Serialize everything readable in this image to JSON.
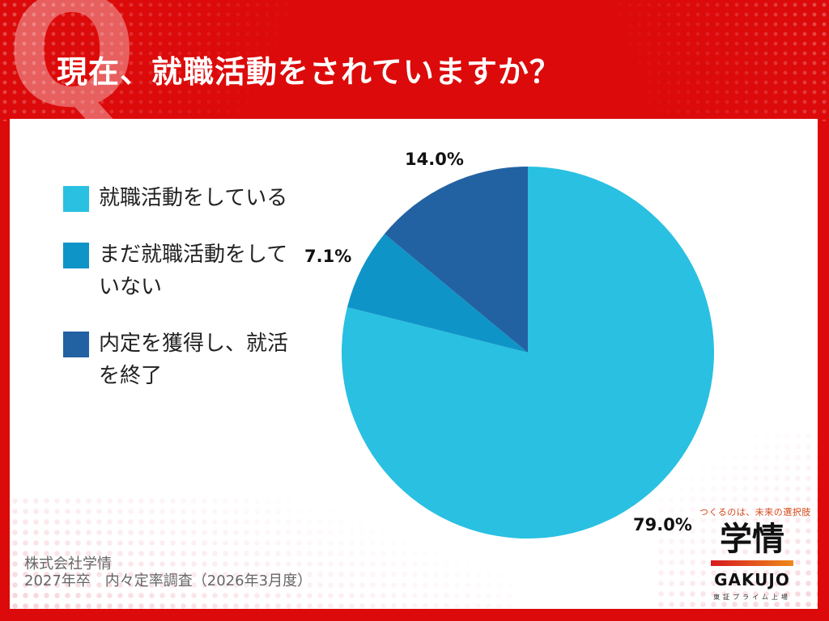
{
  "header": {
    "q_mark": "Q",
    "title": "現在、就職活動をされていますか？",
    "background_color": "#dc0a0a"
  },
  "legend": [
    {
      "label": "就職活動をしている",
      "color": "#29c0e2"
    },
    {
      "label": "まだ就職活動をしていない",
      "color": "#0f94c8"
    },
    {
      "label": "内定を獲得し、就活を終了",
      "color": "#2262a2"
    }
  ],
  "labels": {
    "slice_1": "79.0%",
    "slice_2": "7.1%",
    "slice_3": "14.0%"
  },
  "source": {
    "line1": "株式会社学情",
    "line2": "2027年卒　内々定率調査（2026年3月度）"
  },
  "logo": {
    "tagline": "つくるのは、未来の選択肢",
    "name_ja": "学情",
    "name_en": "GAKUJO",
    "sub": "東証プライム上場"
  },
  "chart_data": {
    "type": "pie",
    "title": "現在、就職活動をされていますか？",
    "categories": [
      "就職活動をしている",
      "まだ就職活動をしていない",
      "内定を獲得し、就活を終了"
    ],
    "values": [
      79.0,
      7.1,
      14.0
    ],
    "colors": [
      "#29c0e2",
      "#0f94c8",
      "#2262a2"
    ],
    "start_angle": "12 o'clock",
    "direction": "clockwise",
    "legend_position": "left",
    "data_labels": [
      "79.0%",
      "7.1%",
      "14.0%"
    ],
    "source": "株式会社学情 2027年卒 内々定率調査（2026年3月度）"
  }
}
